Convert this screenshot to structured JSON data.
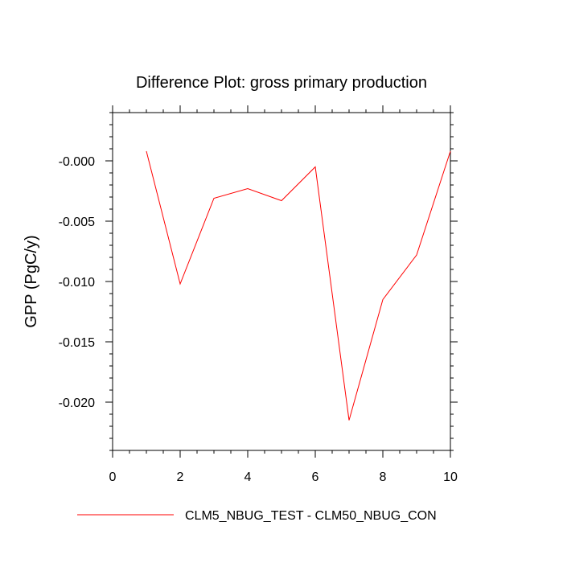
{
  "chart_data": {
    "type": "line",
    "title": "Difference Plot: gross primary production",
    "xlabel": "",
    "ylabel": "GPP  (PgC/y)",
    "xlim": [
      0,
      10
    ],
    "ylim": [
      -0.024,
      0.004
    ],
    "x_ticks": [
      0,
      2,
      4,
      6,
      8,
      10
    ],
    "x_tick_labels": [
      "0",
      "2",
      "4",
      "6",
      "8",
      "10"
    ],
    "y_ticks": [
      0.0,
      -0.005,
      -0.01,
      -0.015,
      -0.02
    ],
    "y_tick_labels": [
      "-0.000",
      "-0.005",
      "-0.010",
      "-0.015",
      "-0.020"
    ],
    "grid": false,
    "legend_position": "bottom",
    "series": [
      {
        "name": "CLM5_NBUG_TEST - CLM50_NBUG_CON",
        "color": "#ff0000",
        "x": [
          1,
          2,
          3,
          4,
          5,
          6,
          7,
          8,
          9,
          10
        ],
        "y": [
          0.0008,
          -0.0102,
          -0.0031,
          -0.0023,
          -0.0033,
          -0.0005,
          -0.0215,
          -0.0115,
          -0.0078,
          0.0008
        ]
      }
    ]
  }
}
